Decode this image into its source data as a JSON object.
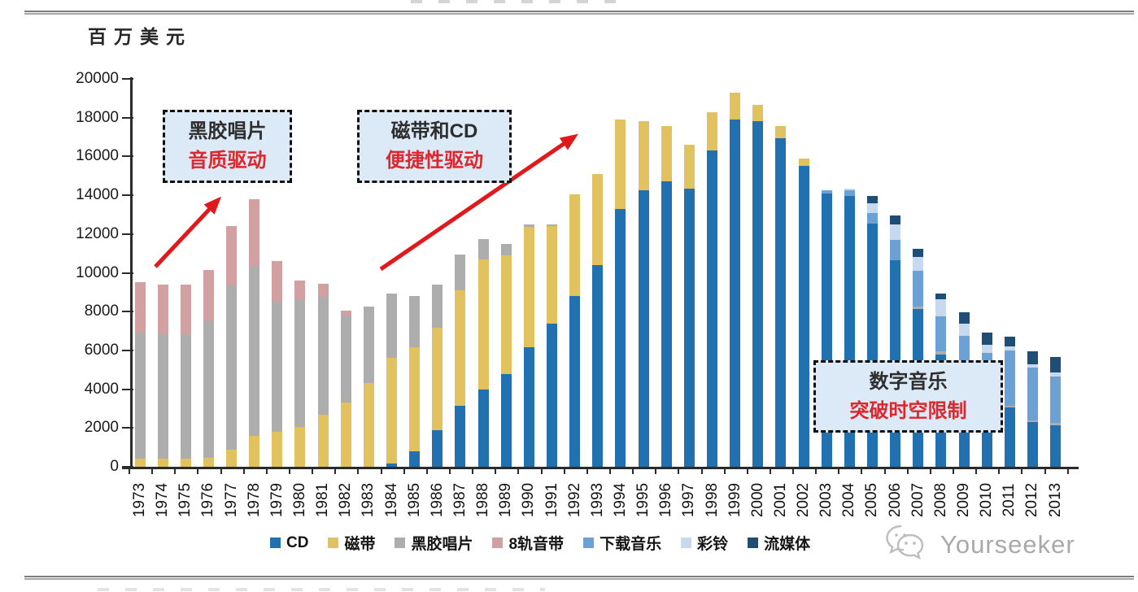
{
  "page": {
    "watermark_text": "Yourseeker"
  },
  "annotations": [
    {
      "line1": "黑胶唱片",
      "line2": "音质驱动"
    },
    {
      "line1": "磁带和CD",
      "line2": "便捷性驱动"
    },
    {
      "line1": "数字音乐",
      "line2": "突破时空限制"
    }
  ],
  "colors": {
    "accent_red": "#E2191C",
    "annotation_fill": "#DCE9F6",
    "annotation_border": "#101010",
    "axis": "#2b2b2b",
    "watermark_gray": "#a9a9a9"
  },
  "chart_data": {
    "type": "bar",
    "stacked": true,
    "unit_label": "百万美元",
    "xlabel": "",
    "ylabel": "百万美元",
    "ylim": [
      0,
      20000
    ],
    "ytick_step": 2000,
    "grid": false,
    "legend_position": "bottom",
    "categories": [
      1973,
      1974,
      1975,
      1976,
      1977,
      1978,
      1979,
      1980,
      1981,
      1982,
      1983,
      1984,
      1985,
      1986,
      1987,
      1988,
      1989,
      1990,
      1991,
      1992,
      1993,
      1994,
      1995,
      1996,
      1997,
      1998,
      1999,
      2000,
      2001,
      2002,
      2003,
      2004,
      2005,
      2006,
      2007,
      2008,
      2009,
      2010,
      2011,
      2012,
      2013
    ],
    "series": [
      {
        "name": "CD",
        "color": "#2170B0",
        "values": [
          0,
          0,
          0,
          0,
          0,
          0,
          0,
          0,
          0,
          0,
          0,
          150,
          800,
          1900,
          3150,
          4000,
          4800,
          6150,
          7400,
          8800,
          10400,
          13300,
          14250,
          14700,
          14350,
          16300,
          17900,
          17800,
          16950,
          15500,
          14100,
          13950,
          12550,
          10650,
          8150,
          5800,
          5350,
          3350,
          3050,
          2300,
          2150
        ]
      },
      {
        "name": "磁带",
        "color": "#E2C25E",
        "values": [
          400,
          400,
          400,
          450,
          900,
          1600,
          1800,
          2050,
          2700,
          3300,
          4300,
          5450,
          5350,
          5250,
          5950,
          6700,
          6100,
          6200,
          5000,
          5250,
          4700,
          4600,
          3550,
          2850,
          2250,
          2000,
          1400,
          850,
          600,
          400,
          0,
          0,
          0,
          0,
          0,
          0,
          0,
          0,
          0,
          0,
          0
        ]
      },
      {
        "name": "黑胶唱片",
        "color": "#ADADAD",
        "values": [
          6500,
          6450,
          6450,
          7050,
          8450,
          8750,
          6700,
          6600,
          6050,
          4500,
          3950,
          3350,
          2650,
          2250,
          1850,
          1050,
          600,
          150,
          100,
          0,
          0,
          0,
          0,
          0,
          0,
          0,
          0,
          0,
          0,
          0,
          0,
          0,
          0,
          0,
          100,
          150,
          100,
          100,
          100,
          100,
          100
        ]
      },
      {
        "name": "8轨音带",
        "color": "#D2A0A0",
        "values": [
          2600,
          2550,
          2550,
          2650,
          3050,
          3450,
          2100,
          950,
          700,
          250,
          0,
          0,
          0,
          0,
          0,
          0,
          0,
          0,
          0,
          0,
          0,
          0,
          0,
          0,
          0,
          0,
          0,
          0,
          0,
          0,
          0,
          0,
          0,
          0,
          0,
          0,
          0,
          0,
          0,
          0,
          0
        ]
      },
      {
        "name": "下载音乐",
        "color": "#6BA1D5",
        "values": [
          0,
          0,
          0,
          0,
          0,
          0,
          0,
          0,
          0,
          0,
          0,
          0,
          0,
          0,
          0,
          0,
          0,
          0,
          0,
          0,
          0,
          0,
          0,
          0,
          0,
          0,
          0,
          0,
          0,
          0,
          150,
          300,
          550,
          1050,
          1850,
          1800,
          1300,
          2400,
          2850,
          2700,
          2400
        ]
      },
      {
        "name": "彩铃",
        "color": "#C6D9EE",
        "values": [
          0,
          0,
          0,
          0,
          0,
          0,
          0,
          0,
          0,
          0,
          0,
          0,
          0,
          0,
          0,
          0,
          0,
          0,
          0,
          0,
          0,
          0,
          0,
          0,
          0,
          0,
          0,
          0,
          0,
          0,
          0,
          100,
          500,
          800,
          700,
          900,
          650,
          450,
          200,
          200,
          200
        ]
      },
      {
        "name": "流媒体",
        "color": "#1E4E75",
        "values": [
          0,
          0,
          0,
          0,
          0,
          0,
          0,
          0,
          0,
          0,
          0,
          0,
          0,
          0,
          0,
          0,
          0,
          0,
          0,
          0,
          0,
          0,
          0,
          0,
          0,
          0,
          0,
          0,
          0,
          0,
          0,
          0,
          380,
          450,
          450,
          300,
          550,
          600,
          500,
          650,
          800
        ]
      }
    ]
  }
}
